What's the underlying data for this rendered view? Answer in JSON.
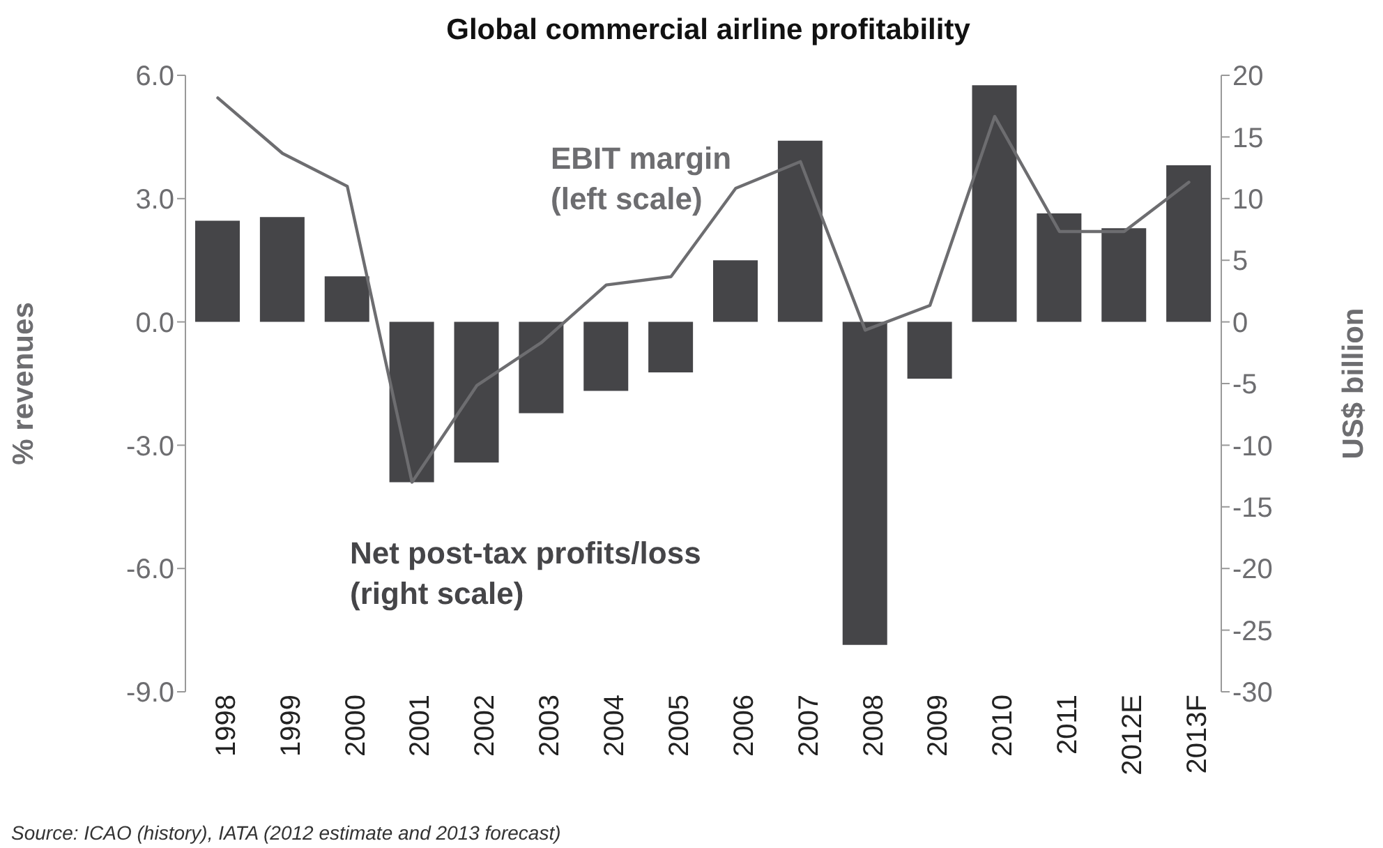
{
  "chart_data": {
    "type": "bar",
    "title": "Global commercial airline profitability",
    "ylabel": "% revenues",
    "y2label": "US$ billion",
    "categories": [
      "1998",
      "1999",
      "2000",
      "2001",
      "2002",
      "2003",
      "2004",
      "2005",
      "2006",
      "2007",
      "2008",
      "2009",
      "2010",
      "2011",
      "2012E",
      "2013F"
    ],
    "series": [
      {
        "axis": "y2",
        "color": "#454548",
        "values": [
          8.2,
          8.5,
          3.7,
          -13.0,
          -11.4,
          -7.4,
          -5.6,
          -4.1,
          5.0,
          14.7,
          -26.2,
          -4.6,
          19.2,
          8.8,
          7.6,
          12.7
        ]
      },
      {
        "type": "line",
        "axis": "y",
        "color": "#6d6d70",
        "values": [
          5.45,
          4.1,
          3.3,
          -3.9,
          -1.55,
          -0.5,
          0.9,
          1.1,
          3.25,
          3.9,
          -0.2,
          0.4,
          5.0,
          2.2,
          2.2,
          3.4
        ]
      }
    ],
    "ylim": [
      -9,
      6
    ],
    "yticks": [
      {
        "value": -9,
        "label": "-9.0"
      },
      {
        "value": -6,
        "label": "-6.0"
      },
      {
        "value": -3,
        "label": "-3.0"
      },
      {
        "value": 0,
        "label": "0.0"
      },
      {
        "value": 3,
        "label": "3.0"
      },
      {
        "value": 6,
        "label": "6.0"
      }
    ],
    "y2lim": [
      -30,
      20
    ],
    "y2ticks": [
      -30,
      -25,
      -20,
      -15,
      -10,
      -5,
      0,
      5,
      10,
      15,
      20
    ],
    "annotations": [
      "EBIT margin\n(left scale)",
      "Net post-tax profits/loss\n(right scale)",
      "Source: ICAO (history), IATA (2012 estimate and 2013 forecast)"
    ],
    "grid": false,
    "legend": false,
    "marker": "none",
    "line_style": "solid"
  }
}
